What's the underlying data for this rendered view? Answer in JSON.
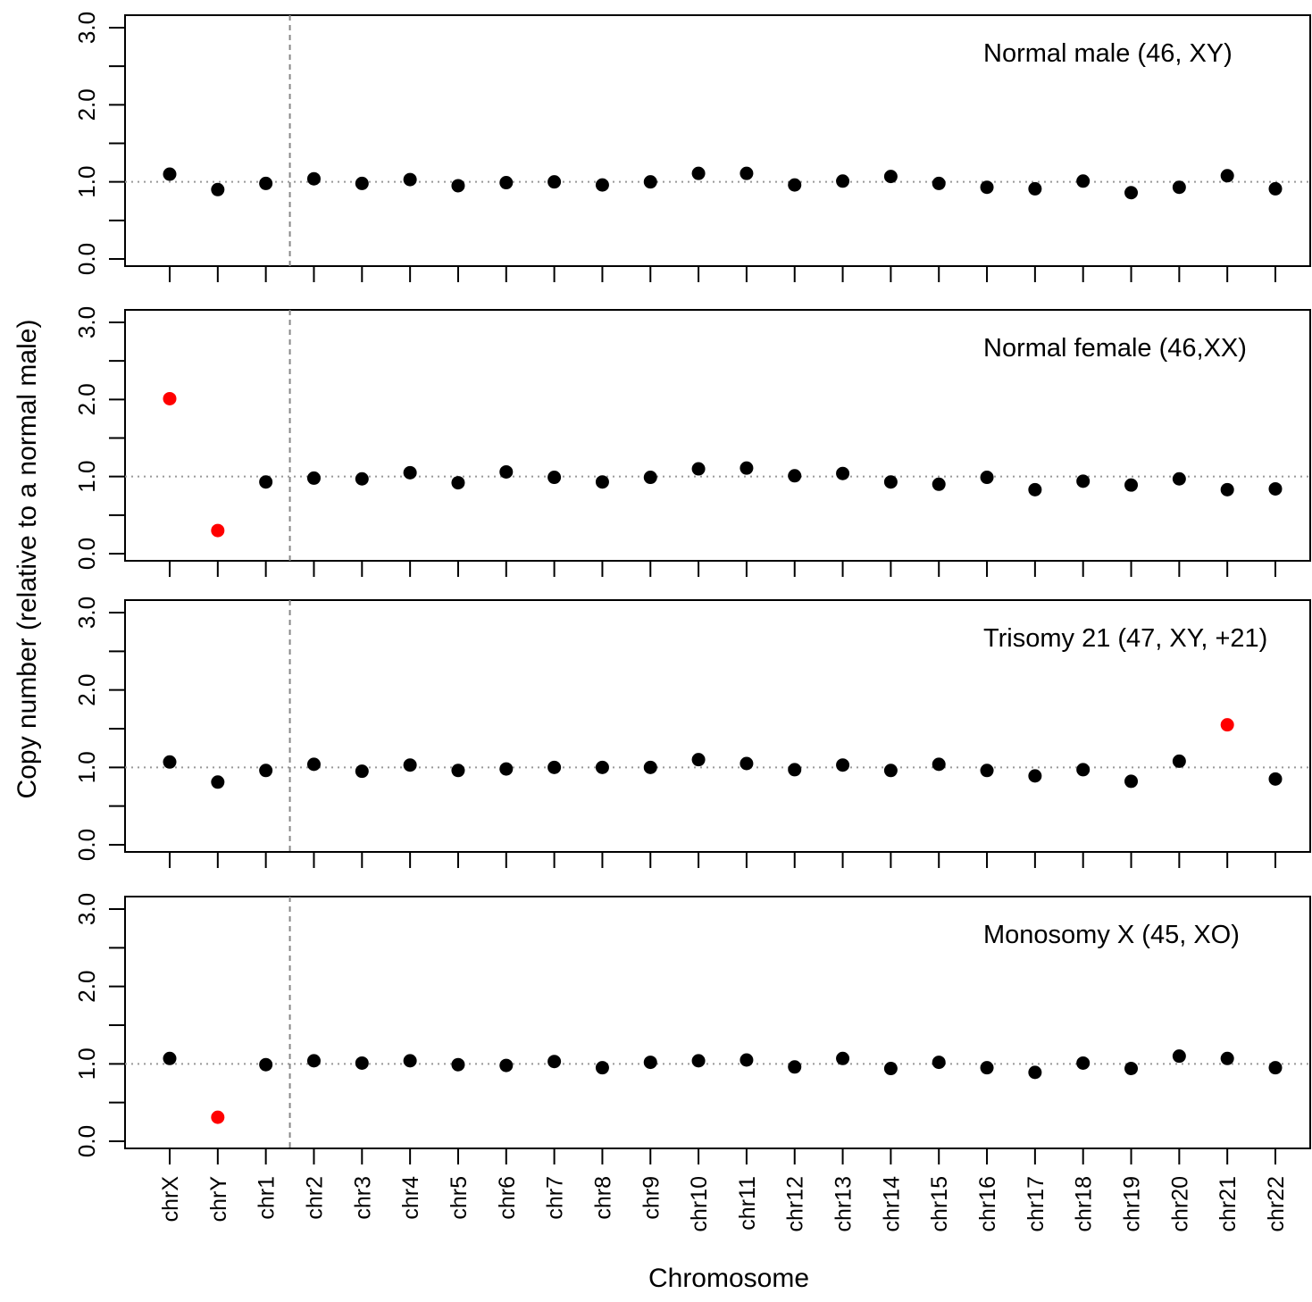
{
  "figure": {
    "ylabel": "Copy number (relative to a normal male)",
    "xlabel": "Chromosome"
  },
  "chart_data": {
    "type": "scatter",
    "categories": [
      "chrX",
      "chrY",
      "chr1",
      "chr2",
      "chr3",
      "chr4",
      "chr5",
      "chr6",
      "chr7",
      "chr8",
      "chr9",
      "chr10",
      "chr11",
      "chr12",
      "chr13",
      "chr14",
      "chr15",
      "chr16",
      "chr17",
      "chr18",
      "chr19",
      "chr20",
      "chr21",
      "chr22"
    ],
    "ylim": [
      0,
      3
    ],
    "yticks": [
      "0.0",
      "1.0",
      "2.0",
      "3.0"
    ],
    "reference_line": 1.0,
    "divider_after_category": "chr1",
    "colors": {
      "normal": "#000000",
      "abnormal": "#ff0000",
      "reference": "#999999",
      "divider": "#888888"
    },
    "panels": [
      {
        "title": "Normal male (46, XY)",
        "values": [
          1.1,
          0.9,
          0.98,
          1.04,
          0.98,
          1.03,
          0.95,
          0.99,
          1.0,
          0.96,
          1.0,
          1.11,
          1.11,
          0.96,
          1.01,
          1.07,
          0.98,
          0.93,
          0.91,
          1.01,
          0.86,
          0.93,
          1.08,
          0.91
        ],
        "highlight": []
      },
      {
        "title": "Normal female (46,XX)",
        "values": [
          2.01,
          0.3,
          0.93,
          0.98,
          0.97,
          1.05,
          0.92,
          1.06,
          0.99,
          0.93,
          0.99,
          1.1,
          1.11,
          1.01,
          1.04,
          0.93,
          0.9,
          0.99,
          0.83,
          0.94,
          0.89,
          0.97,
          0.83,
          0.84
        ],
        "highlight": [
          "chrX",
          "chrY"
        ]
      },
      {
        "title": "Trisomy 21 (47, XY, +21)",
        "values": [
          1.07,
          0.81,
          0.96,
          1.04,
          0.95,
          1.03,
          0.96,
          0.98,
          1.0,
          1.0,
          1.0,
          1.1,
          1.05,
          0.97,
          1.03,
          0.96,
          1.04,
          0.96,
          0.89,
          0.97,
          0.82,
          1.08,
          1.55,
          0.85
        ],
        "highlight": [
          "chr21"
        ]
      },
      {
        "title": "Monosomy X (45, XO)",
        "values": [
          1.07,
          0.31,
          0.99,
          1.04,
          1.01,
          1.04,
          0.99,
          0.98,
          1.03,
          0.95,
          1.02,
          1.04,
          1.05,
          0.96,
          1.07,
          0.94,
          1.02,
          0.95,
          0.89,
          1.01,
          0.94,
          1.1,
          1.07,
          0.95
        ],
        "highlight": [
          "chrY"
        ]
      }
    ]
  }
}
